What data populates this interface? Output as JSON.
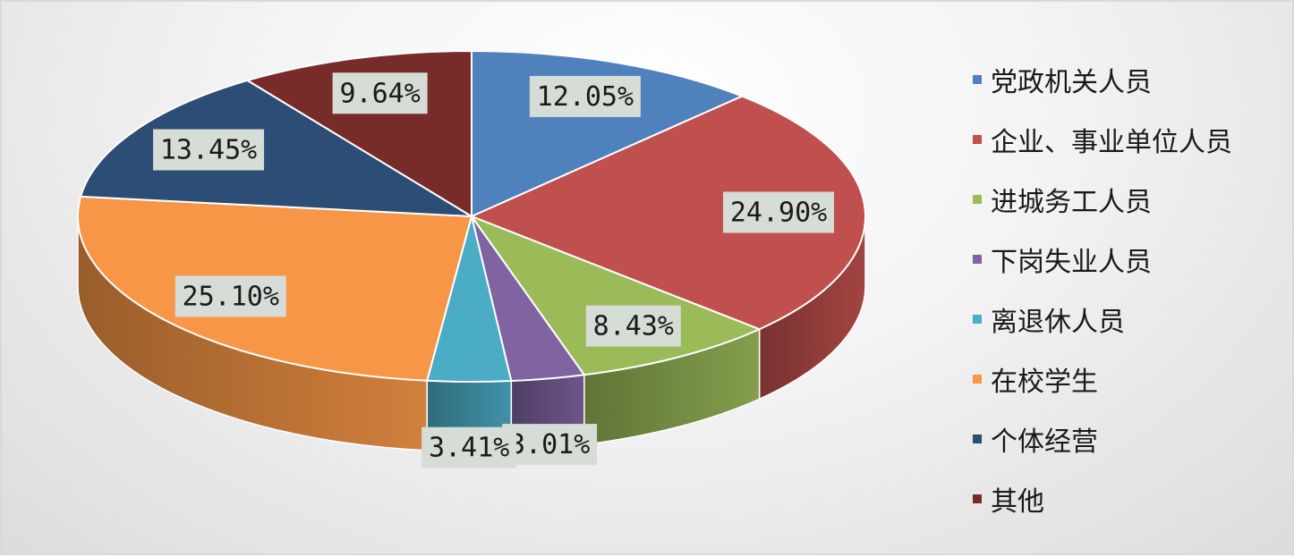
{
  "chart_data": {
    "type": "pie",
    "style": "3d-exploded",
    "categories": [
      "党政机关人员",
      "企业、事业单位人员",
      "进城务工人员",
      "下岗失业人员",
      "离退休人员",
      "在校学生",
      "个体经营",
      "其他"
    ],
    "values": [
      12.05,
      24.9,
      8.43,
      3.01,
      3.41,
      25.1,
      13.45,
      9.64
    ],
    "data_labels": [
      "12.05%",
      "24.90%",
      "8.43%",
      "3.01%",
      "3.41%",
      "25.10%",
      "13.45%",
      "9.64%"
    ],
    "colors": [
      "#4F81BD",
      "#C0504D",
      "#9BBB59",
      "#8064A2",
      "#4BACC6",
      "#F79646",
      "#2C4D75",
      "#772C2A"
    ],
    "legend": "right",
    "title": ""
  }
}
